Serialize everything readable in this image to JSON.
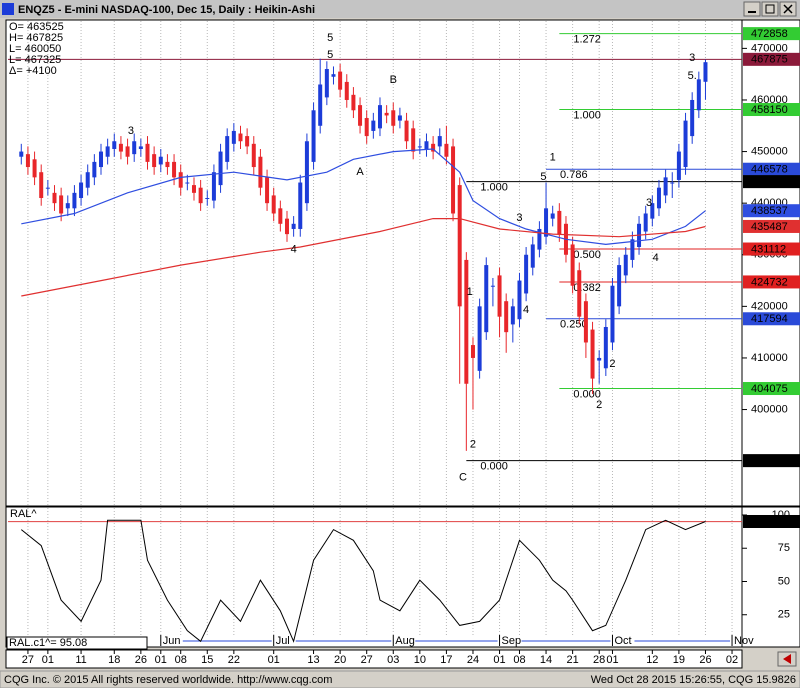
{
  "window": {
    "title": "ENQZ5 - E-mini NASDAQ-100, Dec 15, Daily : Heikin-Ashi",
    "footer_left": "CQG Inc. © 2015 All rights reserved worldwide. http://www.cqg.com",
    "footer_right": "Wed Oct 28 2015 15:26:55, CQG 15.9826"
  },
  "chart_data": [
    {
      "type": "candlestick",
      "info_lines": [
        "O= 463525",
        "H= 467825",
        "L= 460050",
        "L= 467325",
        "Δ=  +4100"
      ],
      "xlim": [
        -2,
        108.5
      ],
      "ylim": [
        381500,
        475500
      ],
      "yticks": [
        400000,
        410000,
        420000,
        430000,
        440000,
        450000,
        460000,
        470000
      ],
      "up_color": "#1c3cd8",
      "down_color": "#e8262a",
      "open": [
        449000,
        449500,
        448500,
        446000,
        443000,
        442000,
        441500,
        439000,
        439000,
        441000,
        443000,
        445000,
        447000,
        449000,
        450500,
        451500,
        451000,
        449500,
        450500,
        451500,
        449500,
        447500,
        448000,
        448000,
        446000,
        444000,
        443500,
        443000,
        441000,
        440500,
        443500,
        448000,
        451500,
        453500,
        453000,
        451500,
        449000,
        445000,
        441500,
        439000,
        437000,
        435000,
        435000,
        440000,
        448000,
        455000,
        460500,
        464500,
        465500,
        463500,
        461000,
        459000,
        456500,
        454000,
        454500,
        457500,
        458000,
        456000,
        456000,
        454500,
        451000,
        450500,
        451500,
        451000,
        451500,
        451000,
        443500,
        429000,
        412500,
        407500,
        415000,
        424000,
        426000,
        421000,
        416500,
        417500,
        422500,
        427500,
        431000,
        433500,
        437000,
        438500,
        436000,
        432000,
        427000,
        421000,
        415500,
        409500,
        408000,
        413000,
        420000,
        426000,
        429000,
        431500,
        434500,
        437000,
        439000,
        441500,
        444000,
        444500,
        447000,
        453000,
        458000,
        463525
      ],
      "high": [
        451500,
        451000,
        450000,
        447500,
        444500,
        443500,
        443000,
        441500,
        443500,
        445500,
        447500,
        449500,
        451500,
        452500,
        453500,
        453000,
        452500,
        453500,
        452500,
        453000,
        451000,
        450500,
        449500,
        449500,
        447500,
        445500,
        445000,
        444500,
        442500,
        447500,
        451500,
        454500,
        455500,
        455000,
        454500,
        453000,
        450500,
        446500,
        443000,
        440500,
        438500,
        437500,
        445500,
        453500,
        459500,
        468000,
        467500,
        466500,
        467000,
        465000,
        462500,
        460500,
        458000,
        457500,
        460500,
        459000,
        459500,
        458500,
        457500,
        456000,
        452500,
        453500,
        453000,
        454500,
        455000,
        452500,
        445000,
        430500,
        414000,
        421500,
        429500,
        425500,
        427500,
        422500,
        421500,
        426500,
        431500,
        433500,
        436500,
        444000,
        439500,
        440000,
        437500,
        433500,
        428500,
        422500,
        417000,
        411500,
        417500,
        425500,
        429500,
        431500,
        434500,
        437500,
        439500,
        441500,
        444500,
        446500,
        446000,
        451500,
        457500,
        461500,
        465500,
        467825
      ],
      "low": [
        447500,
        445500,
        443500,
        439500,
        441500,
        438500,
        436500,
        437500,
        437500,
        439500,
        441500,
        443500,
        445500,
        447500,
        449000,
        448500,
        447500,
        448000,
        449000,
        446500,
        445500,
        446000,
        445500,
        443500,
        441500,
        442500,
        440500,
        438500,
        439500,
        439000,
        442000,
        446500,
        450000,
        450500,
        449500,
        445500,
        441500,
        438500,
        436500,
        434500,
        432500,
        433500,
        433500,
        438500,
        446500,
        453500,
        459000,
        463000,
        460500,
        458500,
        456500,
        453500,
        451500,
        452500,
        453000,
        455500,
        453500,
        454500,
        450500,
        448500,
        449500,
        449000,
        448500,
        449500,
        447500,
        436500,
        405000,
        392000,
        400000,
        406000,
        413500,
        420000,
        414000,
        411000,
        413000,
        416000,
        421000,
        426000,
        429500,
        432000,
        435500,
        432500,
        428500,
        422500,
        416500,
        410000,
        403000,
        405000,
        406500,
        411500,
        418500,
        424500,
        427500,
        430000,
        433000,
        435500,
        437500,
        440000,
        441000,
        443000,
        445500,
        451500,
        456500,
        460050
      ],
      "close": [
        450000,
        447000,
        445000,
        441000,
        443000,
        440000,
        438000,
        440000,
        442000,
        444000,
        446000,
        448000,
        450000,
        451000,
        452000,
        450000,
        449000,
        452000,
        451000,
        448000,
        447000,
        449000,
        447000,
        445000,
        443000,
        444000,
        442000,
        440000,
        441000,
        446000,
        450000,
        453000,
        454000,
        452000,
        451000,
        447000,
        443000,
        440000,
        438000,
        436000,
        434000,
        436000,
        444000,
        452000,
        458000,
        463000,
        466000,
        465000,
        462000,
        460000,
        458000,
        455000,
        453000,
        456000,
        459000,
        457000,
        455000,
        457000,
        452000,
        450000,
        451000,
        452000,
        450000,
        453000,
        449000,
        438000,
        420000,
        405000,
        410000,
        420000,
        428000,
        424000,
        418000,
        415000,
        420000,
        425000,
        430000,
        432000,
        435000,
        439000,
        438000,
        434000,
        430000,
        424000,
        418000,
        413000,
        406000,
        410000,
        416000,
        424000,
        428000,
        430000,
        433000,
        436000,
        438000,
        440000,
        443000,
        445000,
        444000,
        450000,
        456000,
        460000,
        464000,
        467325
      ],
      "lines": [
        {
          "color": "#2f4ee0",
          "x": [
            0,
            8,
            16,
            24,
            32,
            40,
            46,
            50,
            56,
            62,
            66,
            68,
            72,
            76,
            82,
            88,
            95,
            100,
            103
          ],
          "values": [
            436000,
            438000,
            442000,
            445000,
            446000,
            444500,
            446000,
            448500,
            450000,
            450500,
            446000,
            440500,
            437000,
            435000,
            433000,
            432000,
            433000,
            435500,
            438537
          ]
        },
        {
          "color": "#e03030",
          "x": [
            0,
            12,
            24,
            36,
            42,
            54,
            62,
            66,
            72,
            80,
            90,
            100,
            103
          ],
          "values": [
            422000,
            425000,
            428000,
            430500,
            431500,
            434500,
            437000,
            437000,
            435000,
            434000,
            433500,
            434500,
            435487
          ]
        }
      ],
      "price_line": {
        "value": 467875,
        "color": "#8b1a3a"
      },
      "levels": [
        {
          "label": "1.272",
          "value": 472858,
          "color": "#33cc33",
          "start": 81
        },
        {
          "label": "1.000",
          "value": 458150,
          "color": "#33cc33",
          "start": 81
        },
        {
          "label": "0.786",
          "value": 446578,
          "color": "#2a4ad8",
          "start": 79
        },
        {
          "label": "1.000",
          "value": 444175,
          "color": "#000000",
          "start": 67
        },
        {
          "label": "0.500",
          "value": 431112,
          "color": "#e02020",
          "start": 81
        },
        {
          "label": "0.382",
          "value": 424732,
          "color": "#e02020",
          "start": 81
        },
        {
          "label": "0.250",
          "value": 417594,
          "color": "#2a4ad8",
          "start": 79
        },
        {
          "label": "0.000",
          "value": 404075,
          "color": "#33cc33",
          "start": 81
        },
        {
          "label": "0.000",
          "value": 390100,
          "color": "#000000",
          "start": 67
        }
      ],
      "annotations": [
        {
          "text": "5",
          "x": 46.5,
          "y": 472000,
          "color": "#1a3fd0",
          "size": "large"
        },
        {
          "text": "5",
          "x": 46.5,
          "y": 468700,
          "color": "#1a3fd0",
          "size": "small"
        },
        {
          "text": "B",
          "x": 56,
          "y": 463900,
          "color": "#e02020",
          "size": "large"
        },
        {
          "text": "A",
          "x": 51,
          "y": 446000,
          "color": "#e02020",
          "size": "large"
        },
        {
          "text": "3",
          "x": 16.5,
          "y": 454000,
          "color": "#1a3fd0",
          "size": "small"
        },
        {
          "text": "4",
          "x": 41,
          "y": 431000,
          "color": "#1a3fd0",
          "size": "small"
        },
        {
          "text": "1",
          "x": 80,
          "y": 448800,
          "color": "#1a3fd0",
          "size": "large"
        },
        {
          "text": "5",
          "x": 78.6,
          "y": 445100,
          "color": "#1a3fd0",
          "size": "small"
        },
        {
          "text": "3",
          "x": 75,
          "y": 437100,
          "color": "#1a3fd0",
          "size": "small"
        },
        {
          "text": "4",
          "x": 76,
          "y": 419300,
          "color": "#1a3fd0",
          "size": "small"
        },
        {
          "text": "1",
          "x": 67.5,
          "y": 422800,
          "color": "#1a3fd0",
          "size": "small"
        },
        {
          "text": "2",
          "x": 68,
          "y": 393200,
          "color": "#1a3fd0",
          "size": "small"
        },
        {
          "text": "C",
          "x": 66.5,
          "y": 386800,
          "color": "#e02020",
          "size": "large"
        },
        {
          "text": "2",
          "x": 87,
          "y": 400900,
          "color": "#1a3fd0",
          "size": "large"
        },
        {
          "text": "2",
          "x": 89,
          "y": 408800,
          "color": "#1a3fd0",
          "size": "small"
        },
        {
          "text": "3",
          "x": 94.5,
          "y": 440000,
          "color": "#1a3fd0",
          "size": "small"
        },
        {
          "text": "4",
          "x": 95.5,
          "y": 429400,
          "color": "#1a3fd0",
          "size": "small"
        },
        {
          "text": "3",
          "x": 101,
          "y": 468100,
          "color": "#1a3fd0",
          "size": "large"
        },
        {
          "text": "5.",
          "x": 101,
          "y": 464600,
          "color": "#1a3fd0",
          "size": "small"
        }
      ]
    },
    {
      "type": "line",
      "label": "RAL^",
      "readout": "RAL.c1^= 95.08",
      "xlim": [
        -2,
        108.5
      ],
      "ylim": [
        1.5,
        106
      ],
      "yticks": [
        25,
        50,
        75,
        100
      ],
      "hline": 95,
      "hline_color": "#e04040",
      "color": "#000000",
      "x": [
        0,
        3,
        6,
        9,
        12,
        13,
        16,
        18,
        19,
        22,
        25,
        27,
        30,
        33,
        36,
        39,
        41,
        44,
        47,
        50,
        53,
        54,
        57,
        60,
        63,
        66,
        69,
        72,
        75,
        78,
        80,
        82,
        83,
        86,
        88,
        91,
        94,
        97,
        100,
        103
      ],
      "values": [
        89,
        77,
        36,
        20,
        51,
        96,
        96,
        96,
        66,
        36,
        13,
        5,
        36,
        20,
        51,
        28,
        5,
        66,
        89,
        81,
        58,
        36,
        28,
        51,
        36,
        17,
        20,
        36,
        81,
        66,
        51,
        43,
        36,
        13,
        17,
        51,
        89,
        96,
        89,
        95.1
      ],
      "xticks": [
        {
          "value": 1,
          "label": "27"
        },
        {
          "value": 4,
          "label": "01"
        },
        {
          "value": 9,
          "label": "11"
        },
        {
          "value": 14,
          "label": "18"
        },
        {
          "value": 18,
          "label": "26"
        },
        {
          "value": 21,
          "label": "01"
        },
        {
          "value": 24,
          "label": "08"
        },
        {
          "value": 28,
          "label": "15"
        },
        {
          "value": 32,
          "label": "22"
        },
        {
          "value": 38,
          "label": "01"
        },
        {
          "value": 44,
          "label": "13"
        },
        {
          "value": 48,
          "label": "20"
        },
        {
          "value": 52,
          "label": "27"
        },
        {
          "value": 56,
          "label": "03"
        },
        {
          "value": 60,
          "label": "10"
        },
        {
          "value": 64,
          "label": "17"
        },
        {
          "value": 68,
          "label": "24"
        },
        {
          "value": 72,
          "label": "01"
        },
        {
          "value": 75,
          "label": "08"
        },
        {
          "value": 79,
          "label": "14"
        },
        {
          "value": 83,
          "label": "21"
        },
        {
          "value": 87,
          "label": "28"
        },
        {
          "value": 89,
          "label": "01"
        },
        {
          "value": 95,
          "label": "12"
        },
        {
          "value": 99,
          "label": "19"
        },
        {
          "value": 103,
          "label": "26"
        },
        {
          "value": 107,
          "label": "02"
        }
      ],
      "month_ticks": [
        {
          "value": 21,
          "label": "Jun"
        },
        {
          "value": 38,
          "label": "Jul"
        },
        {
          "value": 56,
          "label": "Aug"
        },
        {
          "value": 72,
          "label": "Sep"
        },
        {
          "value": 89,
          "label": "Oct"
        },
        {
          "value": 107,
          "label": "Nov"
        }
      ]
    }
  ]
}
